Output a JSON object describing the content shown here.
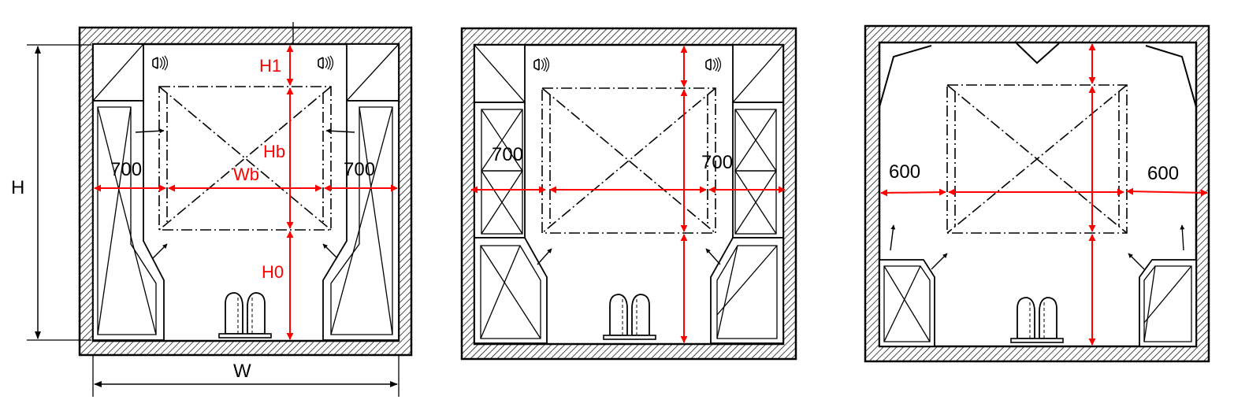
{
  "labels": {
    "H": "H",
    "W": "W",
    "H1": "H1",
    "Hb": "Hb",
    "Wb": "Wb",
    "H0": "H0",
    "d700": "700",
    "d600": "600"
  },
  "colors": {
    "dimension_red": "#ff0000",
    "outline": "#000000",
    "background": "#ffffff"
  }
}
